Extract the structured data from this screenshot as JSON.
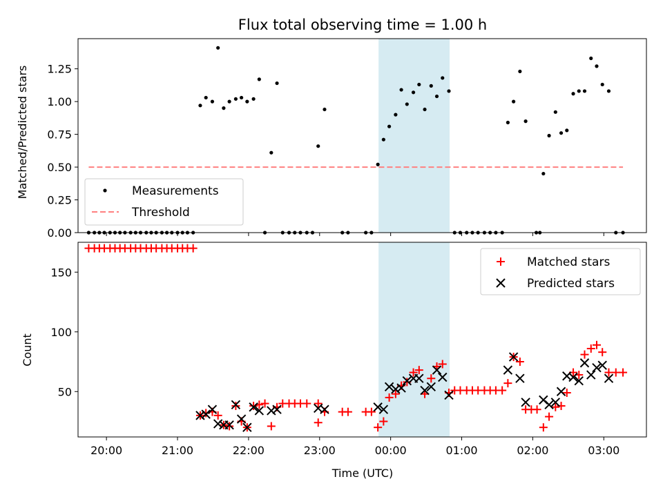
{
  "title": "Flux total observing time = 1.00 h",
  "colors": {
    "measurement": "#000000",
    "threshold": "#ff7f7f",
    "matched": "#ff0000",
    "predicted": "#000000",
    "highlight": "#add8e6"
  },
  "chart_data": [
    {
      "type": "scatter",
      "ylabel": "Matched/Predicted stars",
      "xlim": [
        -4.4,
        3.6
      ],
      "ylim": [
        0,
        1.48
      ],
      "yticks": [
        0.0,
        0.25,
        0.5,
        0.75,
        1.0,
        1.25
      ],
      "threshold": {
        "name": "Threshold",
        "value": 0.5,
        "x_range": [
          -4.25,
          3.27
        ]
      },
      "highlight_span": [
        -0.17,
        0.83
      ],
      "legend": {
        "placement": "bottom-left",
        "entries": [
          "Measurements",
          "Threshold"
        ]
      },
      "series": [
        {
          "name": "Measurements",
          "points": [
            [
              -4.25,
              0
            ],
            [
              -4.17,
              0
            ],
            [
              -4.1,
              0
            ],
            [
              -4.03,
              0
            ],
            [
              -3.95,
              0
            ],
            [
              -3.88,
              0
            ],
            [
              -3.81,
              0
            ],
            [
              -3.74,
              0
            ],
            [
              -3.66,
              0
            ],
            [
              -3.59,
              0
            ],
            [
              -3.52,
              0
            ],
            [
              -3.44,
              0
            ],
            [
              -3.37,
              0
            ],
            [
              -3.3,
              0
            ],
            [
              -3.22,
              0
            ],
            [
              -3.15,
              0
            ],
            [
              -3.08,
              0
            ],
            [
              -3.0,
              0
            ],
            [
              -2.93,
              0
            ],
            [
              -2.86,
              0
            ],
            [
              -2.78,
              0
            ],
            [
              -2.68,
              0.97
            ],
            [
              -2.6,
              1.03
            ],
            [
              -2.51,
              1.0
            ],
            [
              -2.43,
              1.41
            ],
            [
              -2.35,
              0.95
            ],
            [
              -2.27,
              1.0
            ],
            [
              -2.18,
              1.02
            ],
            [
              -2.1,
              1.03
            ],
            [
              -2.02,
              1.0
            ],
            [
              -1.93,
              1.02
            ],
            [
              -1.85,
              1.17
            ],
            [
              -1.77,
              0
            ],
            [
              -1.68,
              0.61
            ],
            [
              -1.6,
              1.14
            ],
            [
              -1.52,
              0
            ],
            [
              -1.43,
              0
            ],
            [
              -1.35,
              0
            ],
            [
              -1.27,
              0
            ],
            [
              -1.18,
              0
            ],
            [
              -1.1,
              0
            ],
            [
              -1.02,
              0.66
            ],
            [
              -0.93,
              0.94
            ],
            [
              -0.68,
              0
            ],
            [
              -0.6,
              0
            ],
            [
              -0.35,
              0
            ],
            [
              -0.27,
              0
            ],
            [
              -0.18,
              0.52
            ],
            [
              -0.1,
              0.71
            ],
            [
              -0.02,
              0.81
            ],
            [
              0.07,
              0.9
            ],
            [
              0.15,
              1.09
            ],
            [
              0.23,
              0.98
            ],
            [
              0.32,
              1.07
            ],
            [
              0.4,
              1.13
            ],
            [
              0.48,
              0.94
            ],
            [
              0.57,
              1.12
            ],
            [
              0.65,
              1.04
            ],
            [
              0.73,
              1.18
            ],
            [
              0.82,
              1.08
            ],
            [
              0.9,
              0
            ],
            [
              0.98,
              0
            ],
            [
              1.07,
              0
            ],
            [
              1.15,
              0
            ],
            [
              1.23,
              0
            ],
            [
              1.32,
              0
            ],
            [
              1.4,
              0
            ],
            [
              1.48,
              0
            ],
            [
              1.57,
              0
            ],
            [
              1.65,
              0.84
            ],
            [
              1.73,
              1.0
            ],
            [
              1.82,
              1.23
            ],
            [
              1.9,
              0.85
            ],
            [
              2.05,
              0
            ],
            [
              2.1,
              0
            ],
            [
              2.15,
              0.45
            ],
            [
              2.23,
              0.74
            ],
            [
              2.32,
              0.92
            ],
            [
              2.4,
              0.76
            ],
            [
              2.48,
              0.78
            ],
            [
              2.57,
              1.06
            ],
            [
              2.65,
              1.08
            ],
            [
              2.73,
              1.08
            ],
            [
              2.82,
              1.33
            ],
            [
              2.9,
              1.27
            ],
            [
              2.98,
              1.13
            ],
            [
              3.07,
              1.08
            ],
            [
              3.17,
              0
            ],
            [
              3.27,
              0
            ]
          ]
        }
      ]
    },
    {
      "type": "scatter",
      "ylabel": "Count",
      "xlabel": "Time (UTC)",
      "xlim": [
        -4.4,
        3.6
      ],
      "ylim": [
        12,
        175
      ],
      "yticks": [
        50,
        100,
        150
      ],
      "xticks": [
        {
          "value": -4,
          "label": "20:00"
        },
        {
          "value": -3,
          "label": "21:00"
        },
        {
          "value": -2,
          "label": "22:00"
        },
        {
          "value": -1,
          "label": "23:00"
        },
        {
          "value": 0,
          "label": "00:00"
        },
        {
          "value": 1,
          "label": "01:00"
        },
        {
          "value": 2,
          "label": "02:00"
        },
        {
          "value": 3,
          "label": "03:00"
        }
      ],
      "highlight_span": [
        -0.17,
        0.83
      ],
      "legend": {
        "placement": "top-right",
        "entries": [
          "Matched stars",
          "Predicted stars"
        ]
      },
      "series": [
        {
          "name": "Matched stars",
          "points": [
            [
              -4.25,
              170
            ],
            [
              -4.17,
              170
            ],
            [
              -4.1,
              170
            ],
            [
              -4.03,
              170
            ],
            [
              -3.95,
              170
            ],
            [
              -3.88,
              170
            ],
            [
              -3.81,
              170
            ],
            [
              -3.74,
              170
            ],
            [
              -3.66,
              170
            ],
            [
              -3.59,
              170
            ],
            [
              -3.52,
              170
            ],
            [
              -3.44,
              170
            ],
            [
              -3.37,
              170
            ],
            [
              -3.3,
              170
            ],
            [
              -3.22,
              170
            ],
            [
              -3.15,
              170
            ],
            [
              -3.08,
              170
            ],
            [
              -3.0,
              170
            ],
            [
              -2.93,
              170
            ],
            [
              -2.86,
              170
            ],
            [
              -2.78,
              170
            ],
            [
              -2.68,
              30
            ],
            [
              -2.6,
              32
            ],
            [
              -2.51,
              33
            ],
            [
              -2.43,
              30
            ],
            [
              -2.35,
              22
            ],
            [
              -2.27,
              21
            ],
            [
              -2.18,
              38
            ],
            [
              -2.1,
              25
            ],
            [
              -2.02,
              20
            ],
            [
              -1.93,
              38
            ],
            [
              -1.85,
              39
            ],
            [
              -1.77,
              40
            ],
            [
              -1.68,
              21
            ],
            [
              -1.6,
              37
            ],
            [
              -1.52,
              40
            ],
            [
              -1.43,
              40
            ],
            [
              -1.35,
              40
            ],
            [
              -1.27,
              40
            ],
            [
              -1.18,
              40
            ],
            [
              -1.02,
              40
            ],
            [
              -1.02,
              24
            ],
            [
              -0.93,
              33
            ],
            [
              -0.68,
              33
            ],
            [
              -0.6,
              33
            ],
            [
              -0.35,
              33
            ],
            [
              -0.27,
              33
            ],
            [
              -0.18,
              20
            ],
            [
              -0.1,
              25
            ],
            [
              -0.02,
              45
            ],
            [
              0.07,
              48
            ],
            [
              0.15,
              55
            ],
            [
              0.23,
              58
            ],
            [
              0.32,
              66
            ],
            [
              0.4,
              68
            ],
            [
              0.48,
              48
            ],
            [
              0.57,
              61
            ],
            [
              0.65,
              71
            ],
            [
              0.73,
              73
            ],
            [
              0.82,
              49
            ],
            [
              0.9,
              51
            ],
            [
              0.98,
              51
            ],
            [
              1.07,
              51
            ],
            [
              1.15,
              51
            ],
            [
              1.23,
              51
            ],
            [
              1.32,
              51
            ],
            [
              1.4,
              51
            ],
            [
              1.48,
              51
            ],
            [
              1.57,
              51
            ],
            [
              1.65,
              57
            ],
            [
              1.73,
              79
            ],
            [
              1.82,
              75
            ],
            [
              1.9,
              35
            ],
            [
              1.98,
              35
            ],
            [
              2.06,
              35
            ],
            [
              2.15,
              20
            ],
            [
              2.23,
              29
            ],
            [
              2.32,
              37
            ],
            [
              2.4,
              38
            ],
            [
              2.48,
              49
            ],
            [
              2.57,
              66
            ],
            [
              2.65,
              64
            ],
            [
              2.73,
              81
            ],
            [
              2.82,
              86
            ],
            [
              2.9,
              89
            ],
            [
              2.98,
              83
            ],
            [
              3.07,
              66
            ],
            [
              3.17,
              66
            ],
            [
              3.27,
              66
            ]
          ]
        },
        {
          "name": "Predicted stars",
          "points": [
            [
              -2.68,
              30
            ],
            [
              -2.6,
              31
            ],
            [
              -2.51,
              35
            ],
            [
              -2.43,
              23
            ],
            [
              -2.35,
              22
            ],
            [
              -2.27,
              22
            ],
            [
              -2.18,
              39
            ],
            [
              -2.1,
              27
            ],
            [
              -2.02,
              20
            ],
            [
              -1.93,
              37
            ],
            [
              -1.85,
              34
            ],
            [
              -1.68,
              34
            ],
            [
              -1.6,
              35
            ],
            [
              -1.02,
              36
            ],
            [
              -0.93,
              35
            ],
            [
              -0.18,
              37
            ],
            [
              -0.1,
              35
            ],
            [
              -0.02,
              54
            ],
            [
              0.07,
              52
            ],
            [
              0.15,
              53
            ],
            [
              0.23,
              59
            ],
            [
              0.32,
              61
            ],
            [
              0.4,
              61
            ],
            [
              0.48,
              51
            ],
            [
              0.57,
              54
            ],
            [
              0.65,
              68
            ],
            [
              0.73,
              62
            ],
            [
              0.82,
              47
            ],
            [
              1.65,
              68
            ],
            [
              1.73,
              79
            ],
            [
              1.82,
              61
            ],
            [
              1.9,
              41
            ],
            [
              2.15,
              43
            ],
            [
              2.23,
              39
            ],
            [
              2.32,
              41
            ],
            [
              2.4,
              50
            ],
            [
              2.48,
              63
            ],
            [
              2.57,
              62
            ],
            [
              2.65,
              59
            ],
            [
              2.73,
              74
            ],
            [
              2.82,
              64
            ],
            [
              2.9,
              70
            ],
            [
              2.98,
              72
            ],
            [
              3.07,
              61
            ]
          ]
        }
      ]
    }
  ]
}
